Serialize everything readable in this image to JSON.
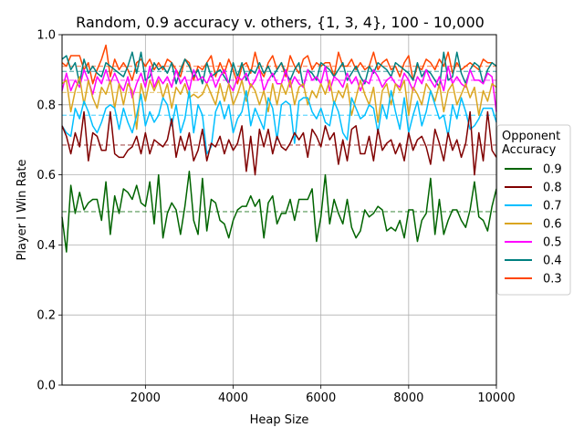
{
  "chart_data": {
    "type": "line",
    "title": "Random, 0.9 accuracy v. others, {1, 3, 4}, 100 - 10,000",
    "xlabel": "Heap Size",
    "ylabel": "Player I Win Rate",
    "xlim": [
      100,
      10000
    ],
    "ylim": [
      0.0,
      1.0
    ],
    "grid": true,
    "legend": {
      "title": "Opponent\nAccuracy",
      "placement": "right-outside"
    },
    "x_ticks": [
      2000,
      4000,
      6000,
      8000,
      10000
    ],
    "x_tick_labels": [
      "2000",
      "4000",
      "6000",
      "8000",
      "10000"
    ],
    "y_ticks": [
      0.0,
      0.2,
      0.4,
      0.6,
      0.8,
      1.0
    ],
    "y_tick_labels": [
      "0.0",
      "0.2",
      "0.4",
      "0.6",
      "0.8",
      "1.0"
    ],
    "x_start": 100,
    "x_step": 100,
    "series": [
      {
        "name": "0.9",
        "color": "#006400",
        "mean": 0.495,
        "values": [
          0.48,
          0.38,
          0.57,
          0.49,
          0.55,
          0.5,
          0.52,
          0.53,
          0.53,
          0.47,
          0.58,
          0.43,
          0.54,
          0.49,
          0.56,
          0.55,
          0.53,
          0.57,
          0.52,
          0.51,
          0.58,
          0.46,
          0.6,
          0.42,
          0.49,
          0.52,
          0.5,
          0.43,
          0.51,
          0.61,
          0.47,
          0.43,
          0.59,
          0.44,
          0.53,
          0.52,
          0.47,
          0.46,
          0.42,
          0.47,
          0.5,
          0.51,
          0.51,
          0.54,
          0.51,
          0.53,
          0.42,
          0.52,
          0.54,
          0.46,
          0.49,
          0.49,
          0.53,
          0.47,
          0.53,
          0.53,
          0.53,
          0.56,
          0.41,
          0.48,
          0.6,
          0.46,
          0.53,
          0.49,
          0.46,
          0.53,
          0.45,
          0.42,
          0.44,
          0.5,
          0.48,
          0.49,
          0.51,
          0.5,
          0.44,
          0.45,
          0.44,
          0.47,
          0.42,
          0.5,
          0.5,
          0.41,
          0.47,
          0.49,
          0.59,
          0.43,
          0.53,
          0.43,
          0.47,
          0.5,
          0.5,
          0.47,
          0.45,
          0.5,
          0.58,
          0.48,
          0.47,
          0.44,
          0.51,
          0.56
        ]
      },
      {
        "name": "0.8",
        "color": "#800000",
        "mean": 0.685,
        "values": [
          0.74,
          0.71,
          0.66,
          0.72,
          0.68,
          0.78,
          0.64,
          0.72,
          0.71,
          0.67,
          0.67,
          0.78,
          0.66,
          0.65,
          0.65,
          0.67,
          0.68,
          0.71,
          0.66,
          0.72,
          0.66,
          0.7,
          0.69,
          0.68,
          0.7,
          0.76,
          0.65,
          0.71,
          0.67,
          0.72,
          0.64,
          0.67,
          0.73,
          0.64,
          0.69,
          0.68,
          0.71,
          0.66,
          0.7,
          0.67,
          0.69,
          0.74,
          0.61,
          0.71,
          0.6,
          0.73,
          0.68,
          0.73,
          0.66,
          0.71,
          0.68,
          0.67,
          0.69,
          0.72,
          0.7,
          0.72,
          0.65,
          0.73,
          0.71,
          0.68,
          0.74,
          0.7,
          0.72,
          0.63,
          0.7,
          0.64,
          0.73,
          0.74,
          0.66,
          0.66,
          0.71,
          0.64,
          0.73,
          0.67,
          0.69,
          0.7,
          0.66,
          0.69,
          0.64,
          0.72,
          0.67,
          0.7,
          0.71,
          0.68,
          0.63,
          0.73,
          0.69,
          0.64,
          0.72,
          0.67,
          0.7,
          0.65,
          0.69,
          0.78,
          0.6,
          0.72,
          0.64,
          0.78,
          0.67,
          0.65
        ]
      },
      {
        "name": "0.7",
        "color": "#00BFFF",
        "mean": 0.77,
        "values": [
          0.74,
          0.72,
          0.71,
          0.79,
          0.76,
          0.81,
          0.78,
          0.74,
          0.72,
          0.75,
          0.79,
          0.8,
          0.79,
          0.73,
          0.79,
          0.75,
          0.72,
          0.77,
          0.83,
          0.74,
          0.78,
          0.75,
          0.77,
          0.82,
          0.8,
          0.74,
          0.8,
          0.72,
          0.76,
          0.84,
          0.72,
          0.8,
          0.77,
          0.66,
          0.68,
          0.78,
          0.81,
          0.76,
          0.8,
          0.72,
          0.76,
          0.78,
          0.84,
          0.74,
          0.79,
          0.76,
          0.73,
          0.82,
          0.79,
          0.7,
          0.8,
          0.81,
          0.8,
          0.69,
          0.81,
          0.82,
          0.82,
          0.78,
          0.76,
          0.79,
          0.75,
          0.74,
          0.81,
          0.78,
          0.72,
          0.7,
          0.82,
          0.79,
          0.76,
          0.77,
          0.8,
          0.79,
          0.72,
          0.8,
          0.76,
          0.84,
          0.78,
          0.73,
          0.82,
          0.72,
          0.77,
          0.81,
          0.74,
          0.78,
          0.84,
          0.8,
          0.76,
          0.77,
          0.71,
          0.8,
          0.76,
          0.82,
          0.78,
          0.73,
          0.74,
          0.76,
          0.79,
          0.79,
          0.79,
          0.75
        ]
      },
      {
        "name": "0.6",
        "color": "#DAA520",
        "mean": 0.835,
        "values": [
          0.86,
          0.87,
          0.78,
          0.84,
          0.88,
          0.8,
          0.87,
          0.82,
          0.79,
          0.85,
          0.83,
          0.87,
          0.79,
          0.86,
          0.8,
          0.86,
          0.84,
          0.73,
          0.86,
          0.81,
          0.87,
          0.84,
          0.87,
          0.82,
          0.86,
          0.79,
          0.85,
          0.83,
          0.86,
          0.82,
          0.83,
          0.82,
          0.83,
          0.86,
          0.83,
          0.8,
          0.86,
          0.81,
          0.86,
          0.8,
          0.83,
          0.87,
          0.81,
          0.86,
          0.84,
          0.8,
          0.84,
          0.78,
          0.86,
          0.8,
          0.86,
          0.83,
          0.87,
          0.8,
          0.85,
          0.86,
          0.8,
          0.84,
          0.82,
          0.86,
          0.83,
          0.87,
          0.8,
          0.84,
          0.82,
          0.86,
          0.77,
          0.82,
          0.87,
          0.83,
          0.8,
          0.85,
          0.75,
          0.84,
          0.86,
          0.8,
          0.86,
          0.84,
          0.87,
          0.77,
          0.85,
          0.83,
          0.8,
          0.86,
          0.84,
          0.81,
          0.86,
          0.78,
          0.84,
          0.86,
          0.8,
          0.83,
          0.86,
          0.82,
          0.85,
          0.77,
          0.84,
          0.81,
          0.86,
          0.85
        ]
      },
      {
        "name": "0.5",
        "color": "#FF00FF",
        "mean": 0.87,
        "values": [
          0.84,
          0.89,
          0.84,
          0.87,
          0.85,
          0.9,
          0.87,
          0.83,
          0.88,
          0.86,
          0.9,
          0.86,
          0.89,
          0.86,
          0.84,
          0.88,
          0.82,
          0.86,
          0.89,
          0.85,
          0.91,
          0.85,
          0.88,
          0.86,
          0.88,
          0.85,
          0.9,
          0.86,
          0.88,
          0.84,
          0.9,
          0.87,
          0.88,
          0.86,
          0.89,
          0.85,
          0.88,
          0.9,
          0.86,
          0.84,
          0.88,
          0.87,
          0.89,
          0.85,
          0.87,
          0.9,
          0.84,
          0.87,
          0.89,
          0.86,
          0.86,
          0.9,
          0.85,
          0.88,
          0.86,
          0.85,
          0.9,
          0.87,
          0.88,
          0.86,
          0.91,
          0.84,
          0.88,
          0.87,
          0.85,
          0.89,
          0.86,
          0.88,
          0.84,
          0.87,
          0.86,
          0.9,
          0.88,
          0.85,
          0.87,
          0.88,
          0.86,
          0.85,
          0.89,
          0.87,
          0.84,
          0.88,
          0.86,
          0.9,
          0.87,
          0.85,
          0.88,
          0.84,
          0.91,
          0.86,
          0.88,
          0.86,
          0.85,
          0.9,
          0.87,
          0.87,
          0.86,
          0.89,
          0.88,
          0.78
        ]
      },
      {
        "name": "0.4",
        "color": "#008080",
        "mean": 0.895,
        "values": [
          0.93,
          0.94,
          0.9,
          0.92,
          0.86,
          0.93,
          0.89,
          0.91,
          0.89,
          0.88,
          0.92,
          0.91,
          0.9,
          0.89,
          0.88,
          0.91,
          0.95,
          0.89,
          0.95,
          0.87,
          0.88,
          0.92,
          0.9,
          0.91,
          0.89,
          0.92,
          0.86,
          0.9,
          0.93,
          0.91,
          0.88,
          0.9,
          0.86,
          0.92,
          0.88,
          0.89,
          0.9,
          0.88,
          0.86,
          0.92,
          0.88,
          0.92,
          0.87,
          0.9,
          0.89,
          0.92,
          0.89,
          0.91,
          0.88,
          0.9,
          0.92,
          0.89,
          0.87,
          0.9,
          0.92,
          0.85,
          0.9,
          0.89,
          0.87,
          0.92,
          0.91,
          0.9,
          0.88,
          0.9,
          0.92,
          0.87,
          0.89,
          0.91,
          0.88,
          0.86,
          0.91,
          0.89,
          0.92,
          0.91,
          0.9,
          0.88,
          0.92,
          0.91,
          0.9,
          0.89,
          0.87,
          0.92,
          0.88,
          0.9,
          0.89,
          0.87,
          0.85,
          0.95,
          0.87,
          0.88,
          0.95,
          0.89,
          0.86,
          0.9,
          0.92,
          0.91,
          0.86,
          0.9,
          0.92,
          0.91
        ]
      },
      {
        "name": "0.3",
        "color": "#FF4500",
        "mean": 0.91,
        "values": [
          0.92,
          0.91,
          0.94,
          0.94,
          0.94,
          0.9,
          0.92,
          0.86,
          0.9,
          0.93,
          0.97,
          0.88,
          0.93,
          0.9,
          0.92,
          0.9,
          0.87,
          0.92,
          0.93,
          0.91,
          0.93,
          0.9,
          0.92,
          0.9,
          0.93,
          0.92,
          0.9,
          0.88,
          0.93,
          0.92,
          0.87,
          0.91,
          0.9,
          0.92,
          0.94,
          0.88,
          0.92,
          0.89,
          0.93,
          0.9,
          0.86,
          0.91,
          0.92,
          0.89,
          0.95,
          0.9,
          0.88,
          0.92,
          0.94,
          0.9,
          0.92,
          0.88,
          0.94,
          0.91,
          0.89,
          0.93,
          0.94,
          0.9,
          0.92,
          0.91,
          0.92,
          0.92,
          0.88,
          0.95,
          0.91,
          0.91,
          0.93,
          0.9,
          0.92,
          0.9,
          0.91,
          0.95,
          0.9,
          0.92,
          0.93,
          0.9,
          0.91,
          0.88,
          0.92,
          0.94,
          0.87,
          0.91,
          0.9,
          0.93,
          0.92,
          0.9,
          0.93,
          0.91,
          0.95,
          0.89,
          0.92,
          0.9,
          0.91,
          0.92,
          0.91,
          0.9,
          0.93,
          0.92,
          0.92,
          0.91
        ]
      }
    ]
  }
}
